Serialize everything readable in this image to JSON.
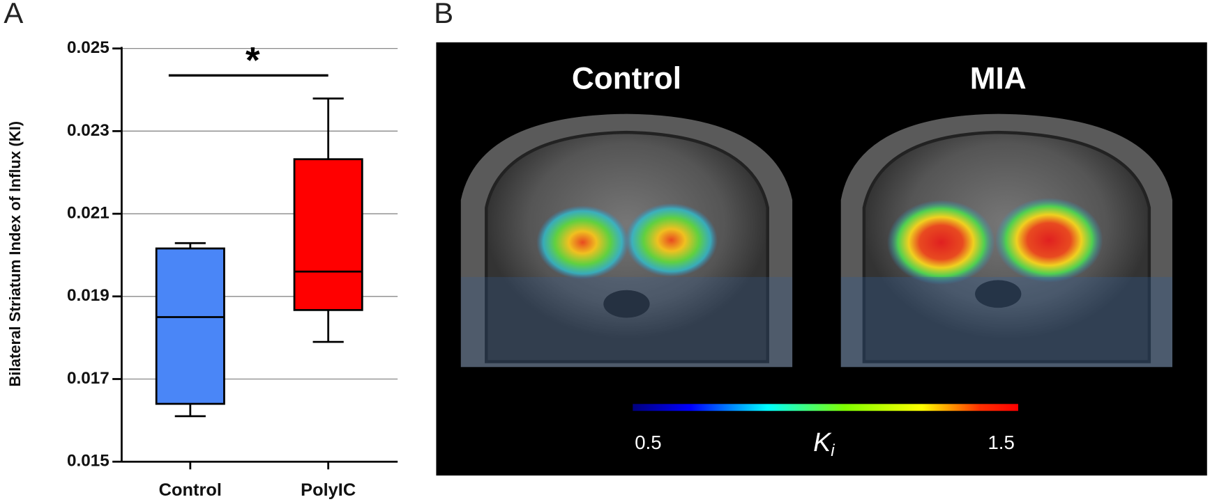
{
  "panels": [
    "A",
    "B"
  ],
  "chart_data": {
    "type": "box",
    "y_label": "Bilateral Striatum Index of Influx (KI)",
    "categories": [
      "Control",
      "PolyIC"
    ],
    "colors": [
      "#4a86f7",
      "#ff0000"
    ],
    "min": [
      0.0161,
      0.0179
    ],
    "q1": [
      0.0164,
      0.01867
    ],
    "median": [
      0.0185,
      0.0196
    ],
    "q3": [
      0.02016,
      0.02232
    ],
    "max": [
      0.02029,
      0.02379
    ],
    "ylim": [
      0.015,
      0.025
    ],
    "yticks": [
      0.015,
      0.017,
      0.019,
      0.021,
      0.023,
      0.025
    ],
    "grid": true,
    "annotation": "*"
  },
  "image_panel": {
    "titles": [
      "Control",
      "MIA"
    ],
    "colorbar": {
      "label": "K",
      "label_subscript": "i",
      "clim": [
        0.5,
        1.5
      ],
      "ticks": [
        0.5,
        1.5
      ]
    }
  }
}
